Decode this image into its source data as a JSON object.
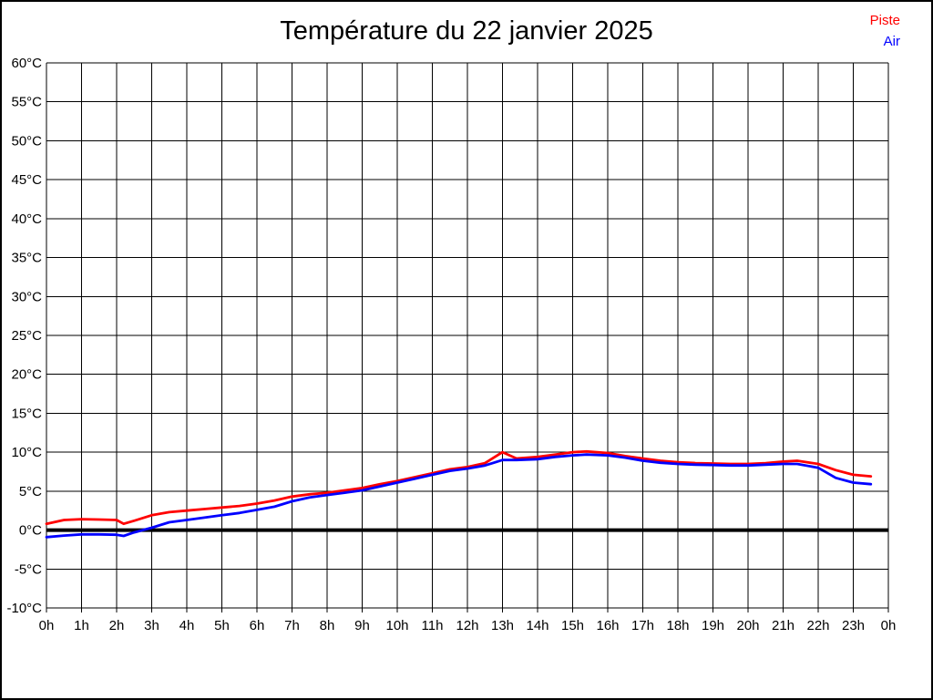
{
  "title": "Température du 22 janvier 2025",
  "legend": {
    "piste": {
      "label": "Piste",
      "color": "#ff0000"
    },
    "air": {
      "label": "Air",
      "color": "#0000ff"
    }
  },
  "colors": {
    "grid": "#000000",
    "zero_line": "#000000",
    "background": "#ffffff",
    "text": "#000000"
  },
  "chart_data": {
    "type": "line",
    "title": "Température du 22 janvier 2025",
    "xlabel": "",
    "ylabel": "",
    "y_unit": "°C",
    "ylim": [
      -10,
      60
    ],
    "y_step": 5,
    "xlim": [
      0,
      24
    ],
    "grid": true,
    "legend_position": "top-right",
    "y_tick_labels": [
      "60°C",
      "55°C",
      "50°C",
      "45°C",
      "40°C",
      "35°C",
      "30°C",
      "25°C",
      "20°C",
      "15°C",
      "10°C",
      "5°C",
      "0°C",
      "-5°C",
      "-10°C"
    ],
    "y_tick_values": [
      60,
      55,
      50,
      45,
      40,
      35,
      30,
      25,
      20,
      15,
      10,
      5,
      0,
      -5,
      -10
    ],
    "x_tick_labels": [
      "0h",
      "1h",
      "2h",
      "3h",
      "4h",
      "5h",
      "6h",
      "7h",
      "8h",
      "9h",
      "10h",
      "11h",
      "12h",
      "13h",
      "14h",
      "15h",
      "16h",
      "17h",
      "18h",
      "19h",
      "20h",
      "21h",
      "22h",
      "23h",
      "0h"
    ],
    "x_tick_values": [
      0,
      1,
      2,
      3,
      4,
      5,
      6,
      7,
      8,
      9,
      10,
      11,
      12,
      13,
      14,
      15,
      16,
      17,
      18,
      19,
      20,
      21,
      22,
      23,
      24
    ],
    "x_hours": [
      0,
      0.5,
      1,
      1.5,
      2,
      2.2,
      2.5,
      3,
      3.5,
      4,
      4.5,
      5,
      5.5,
      6,
      6.5,
      7,
      7.5,
      8,
      8.5,
      9,
      9.5,
      10,
      10.5,
      11,
      11.5,
      12,
      12.5,
      13,
      13.4,
      14,
      14.5,
      15,
      15.4,
      16,
      16.5,
      17,
      17.5,
      18,
      18.5,
      19,
      19.5,
      20,
      20.5,
      21,
      21.4,
      22,
      22.5,
      23,
      23.5
    ],
    "series": [
      {
        "name": "Piste",
        "color": "#ff0000",
        "values": [
          0.8,
          1.3,
          1.4,
          1.35,
          1.3,
          0.8,
          1.2,
          1.9,
          2.3,
          2.5,
          2.7,
          2.9,
          3.1,
          3.4,
          3.8,
          4.3,
          4.6,
          4.8,
          5.1,
          5.4,
          5.9,
          6.3,
          6.8,
          7.3,
          7.8,
          8.1,
          8.6,
          10.0,
          9.2,
          9.4,
          9.7,
          10.0,
          10.1,
          9.9,
          9.5,
          9.2,
          8.9,
          8.7,
          8.6,
          8.55,
          8.5,
          8.5,
          8.6,
          8.8,
          8.9,
          8.5,
          7.7,
          7.1,
          6.9
        ]
      },
      {
        "name": "Air",
        "color": "#0000ff",
        "values": [
          -0.9,
          -0.7,
          -0.55,
          -0.55,
          -0.6,
          -0.75,
          -0.3,
          0.3,
          1.0,
          1.3,
          1.6,
          1.9,
          2.2,
          2.6,
          3.0,
          3.7,
          4.2,
          4.5,
          4.8,
          5.1,
          5.6,
          6.1,
          6.6,
          7.1,
          7.6,
          7.9,
          8.3,
          9.0,
          9.0,
          9.1,
          9.4,
          9.6,
          9.7,
          9.6,
          9.3,
          8.9,
          8.65,
          8.5,
          8.4,
          8.35,
          8.3,
          8.3,
          8.4,
          8.5,
          8.5,
          8.0,
          6.7,
          6.1,
          5.9
        ]
      }
    ],
    "zero_line": true
  }
}
